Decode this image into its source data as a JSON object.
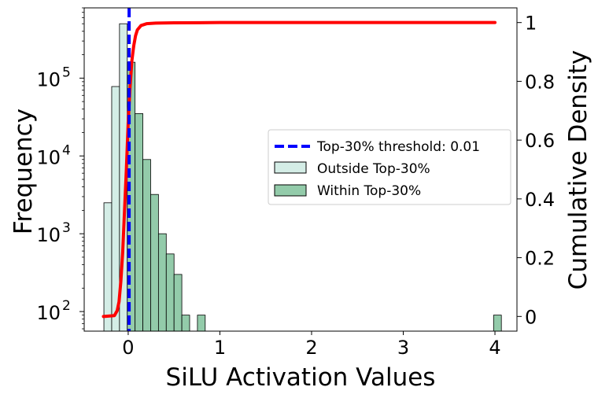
{
  "chart_data": {
    "type": "histogram",
    "xlabel": "SiLU Activation Values",
    "ylabel": "Frequency",
    "y2label": "Cumulative Density",
    "xlim": [
      -0.48,
      4.24
    ],
    "ylim_log": [
      56,
      800000
    ],
    "y2lim": [
      -0.05,
      1.05
    ],
    "yscale": "log",
    "x_ticks": [
      {
        "value": 0,
        "label": "0"
      },
      {
        "value": 1,
        "label": "1"
      },
      {
        "value": 2,
        "label": "2"
      },
      {
        "value": 3,
        "label": "3"
      },
      {
        "value": 4,
        "label": "4"
      }
    ],
    "y_ticks": [
      {
        "value": 100,
        "base": "10",
        "exp": "2"
      },
      {
        "value": 1000,
        "base": "10",
        "exp": "3"
      },
      {
        "value": 10000,
        "base": "10",
        "exp": "4"
      },
      {
        "value": 100000,
        "base": "10",
        "exp": "5"
      }
    ],
    "y2_ticks": [
      {
        "value": 0,
        "label": "0"
      },
      {
        "value": 0.2,
        "label": "0.2"
      },
      {
        "value": 0.4,
        "label": "0.4"
      },
      {
        "value": 0.6,
        "label": "0.6"
      },
      {
        "value": 0.8,
        "label": "0.8"
      },
      {
        "value": 1,
        "label": "1"
      }
    ],
    "threshold": 0.01,
    "bin_width": 0.085,
    "series": [
      {
        "name": "Outside Top-30%",
        "color": "#d4ede6",
        "bins": [
          {
            "x0": -0.265,
            "count": 2500
          },
          {
            "x0": -0.18,
            "count": 78000
          },
          {
            "x0": -0.095,
            "count": 500000
          }
        ]
      },
      {
        "name": "Within Top-30%",
        "color": "#93cbaa",
        "bins": [
          {
            "x0": -0.01,
            "count": 160000
          },
          {
            "x0": 0.075,
            "count": 35000
          },
          {
            "x0": 0.16,
            "count": 9000
          },
          {
            "x0": 0.245,
            "count": 3200
          },
          {
            "x0": 0.33,
            "count": 1000
          },
          {
            "x0": 0.415,
            "count": 550
          },
          {
            "x0": 0.5,
            "count": 300
          },
          {
            "x0": 0.585,
            "count": 90
          },
          {
            "x0": 0.67,
            "count": 0
          },
          {
            "x0": 0.755,
            "count": 90
          },
          {
            "x0": 3.985,
            "count": 90
          }
        ]
      }
    ],
    "cdf": {
      "name": "Cumulative",
      "color": "#ff0000",
      "x": [
        -0.27,
        -0.15,
        -0.12,
        -0.1,
        -0.08,
        -0.06,
        -0.04,
        -0.02,
        0.0,
        0.02,
        0.04,
        0.06,
        0.08,
        0.1,
        0.14,
        0.2,
        0.3,
        0.5,
        1.0,
        2.0,
        3.0,
        4.0
      ],
      "y": [
        0.0,
        0.003,
        0.02,
        0.05,
        0.12,
        0.22,
        0.36,
        0.5,
        0.66,
        0.78,
        0.87,
        0.92,
        0.955,
        0.975,
        0.99,
        0.996,
        0.998,
        0.999,
        1.0,
        1.0,
        1.0,
        1.0
      ]
    },
    "legend": {
      "placement": "center-right",
      "entries": [
        {
          "label": "Top-30% threshold: 0.01",
          "kind": "dashed-line",
          "color": "#0000ff"
        },
        {
          "label": "Outside Top-30%",
          "kind": "patch",
          "color": "#d4ede6"
        },
        {
          "label": "Within Top-30%",
          "kind": "patch",
          "color": "#93cbaa"
        }
      ]
    }
  }
}
